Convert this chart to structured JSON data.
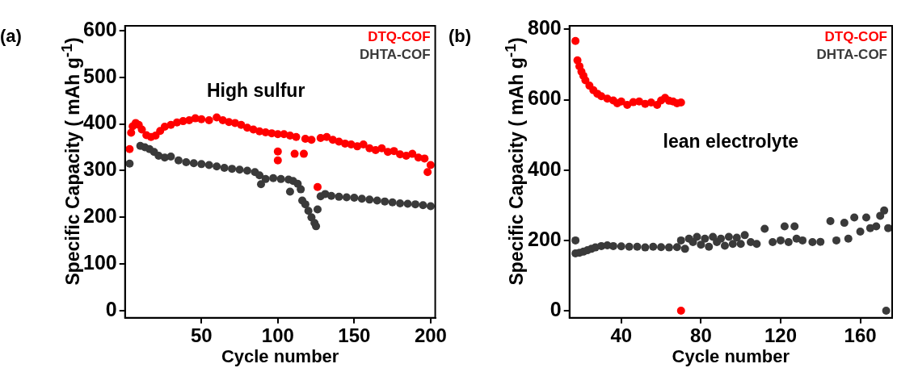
{
  "chart_data": [
    {
      "type": "scatter",
      "xlabel": "Cycle number",
      "ylabel": "Specific Capacity ( mAh g$^{-1}$)",
      "annotations": [
        "(a)",
        "High sulfur"
      ],
      "xlim": [
        0,
        203
      ],
      "xticks": [
        50,
        100,
        150,
        200
      ],
      "ylim": [
        -15,
        610
      ],
      "yticks": [
        0,
        100,
        200,
        300,
        400,
        500,
        600
      ],
      "grid": false,
      "legend": "top right",
      "marker": "circle",
      "series": [
        {
          "name": "DTQ-COF",
          "color": "#ff0000",
          "x": [
            3,
            4,
            5,
            7,
            9,
            11,
            14,
            17,
            20,
            23,
            26,
            30,
            34,
            38,
            42,
            46,
            50,
            55,
            60,
            64,
            68,
            72,
            76,
            80,
            84,
            88,
            92,
            96,
            100,
            100,
            100,
            104,
            108,
            111,
            112,
            117,
            118,
            122,
            126,
            128,
            132,
            136,
            140,
            144,
            148,
            152,
            156,
            160,
            164,
            168,
            172,
            176,
            180,
            184,
            188,
            192,
            196,
            198,
            200
          ],
          "values": [
            346,
            381,
            395,
            402,
            398,
            388,
            376,
            372,
            375,
            385,
            394,
            398,
            403,
            406,
            408,
            412,
            410,
            408,
            414,
            408,
            404,
            402,
            398,
            392,
            388,
            384,
            382,
            380,
            378,
            341,
            322,
            378,
            375,
            336,
            372,
            336,
            368,
            366,
            265,
            370,
            372,
            366,
            362,
            358,
            356,
            352,
            356,
            348,
            344,
            348,
            340,
            342,
            335,
            332,
            336,
            328,
            326,
            297,
            312
          ]
        },
        {
          "name": "DHTA-COF",
          "color": "#3a3a3a",
          "x": [
            3,
            10,
            13,
            16,
            19,
            22,
            26,
            30,
            35,
            40,
            45,
            50,
            55,
            60,
            65,
            70,
            75,
            80,
            85,
            88,
            89,
            92,
            97,
            102,
            107,
            108,
            110,
            113,
            115,
            116,
            118,
            120,
            122,
            124,
            125,
            126,
            128,
            131,
            135,
            140,
            145,
            150,
            155,
            160,
            165,
            170,
            175,
            180,
            185,
            190,
            195,
            200
          ],
          "values": [
            315,
            353,
            350,
            346,
            340,
            332,
            328,
            330,
            322,
            318,
            316,
            314,
            312,
            309,
            306,
            304,
            302,
            300,
            297,
            290,
            271,
            282,
            284,
            282,
            281,
            255,
            278,
            272,
            260,
            236,
            228,
            214,
            200,
            188,
            181,
            217,
            245,
            250,
            246,
            244,
            243,
            242,
            240,
            238,
            236,
            234,
            232,
            230,
            229,
            228,
            226,
            224
          ]
        }
      ]
    },
    {
      "type": "scatter",
      "xlabel": "Cycle number",
      "ylabel": "Specific Capacity ( mAh g$^{-1}$)",
      "annotations": [
        "(b)",
        "lean electrolyte"
      ],
      "xlim": [
        14,
        176
      ],
      "xticks": [
        40,
        80,
        120,
        160
      ],
      "ylim": [
        -20,
        810
      ],
      "yticks": [
        0,
        200,
        400,
        600,
        800
      ],
      "grid": false,
      "legend": "top right",
      "marker": "circle",
      "series": [
        {
          "name": "DTQ-COF",
          "color": "#ff0000",
          "x": [
            17,
            18,
            19,
            20,
            21,
            22,
            24,
            26,
            28,
            30,
            33,
            36,
            38,
            40,
            43,
            46,
            49,
            52,
            55,
            58,
            60,
            62,
            64,
            66,
            68,
            70,
            70
          ],
          "values": [
            767,
            712,
            695,
            680,
            668,
            655,
            640,
            627,
            617,
            610,
            603,
            598,
            590,
            595,
            585,
            593,
            595,
            588,
            592,
            585,
            598,
            605,
            597,
            595,
            590,
            592,
            0
          ]
        },
        {
          "name": "DHTA-COF",
          "color": "#3a3a3a",
          "x": [
            17,
            17,
            19,
            21,
            23,
            25,
            27,
            30,
            33,
            36,
            40,
            44,
            48,
            52,
            56,
            60,
            64,
            68,
            70,
            72,
            74,
            76,
            78,
            80,
            82,
            84,
            86,
            88,
            90,
            92,
            94,
            96,
            98,
            100,
            102,
            105,
            108,
            112,
            116,
            120,
            122,
            124,
            127,
            128,
            131,
            136,
            140,
            145,
            148,
            152,
            154,
            157,
            160,
            163,
            165,
            168,
            170,
            172,
            174,
            173
          ],
          "values": [
            200,
            163,
            165,
            168,
            172,
            176,
            180,
            184,
            186,
            184,
            183,
            182,
            182,
            180,
            182,
            181,
            180,
            181,
            200,
            176,
            205,
            195,
            210,
            188,
            205,
            182,
            210,
            195,
            205,
            185,
            210,
            190,
            208,
            190,
            215,
            195,
            190,
            233,
            195,
            200,
            240,
            195,
            240,
            205,
            200,
            195,
            196,
            255,
            200,
            250,
            205,
            265,
            225,
            265,
            235,
            240,
            270,
            285,
            235,
            0
          ]
        }
      ]
    }
  ]
}
